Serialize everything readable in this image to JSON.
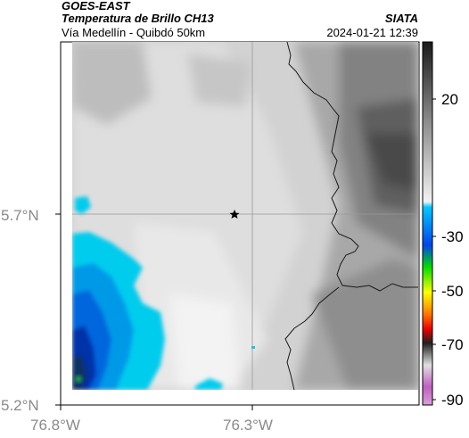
{
  "header": {
    "satellite": "GOES-EAST",
    "product": "Temperatura de Brillo CH13",
    "location": "Vía Medellín - Quibdó 50km",
    "agency": "SIATA",
    "datetime": "2024-01-21 12:39"
  },
  "map": {
    "lat_ticks": [
      "5.7°N",
      "5.2°N"
    ],
    "lon_ticks": [
      "76.8°W",
      "76.3°W"
    ],
    "marker": "star-icon",
    "colors": {
      "frame": "#000000",
      "grid": "#9a9a9a",
      "border": "#1a1a1a"
    }
  },
  "colorbar": {
    "ticks": [
      "20",
      "-30",
      "-50",
      "-70",
      "-90"
    ],
    "units_hint": "brightness temperature",
    "colors": [
      "#1a1a1a",
      "#8c8c8c",
      "#f2f2f2",
      "#00c8ff",
      "#0044ee",
      "#00dd00",
      "#ffff00",
      "#ff7700",
      "#ee0000",
      "#202020",
      "#e0e0e0",
      "#c060c0"
    ]
  }
}
